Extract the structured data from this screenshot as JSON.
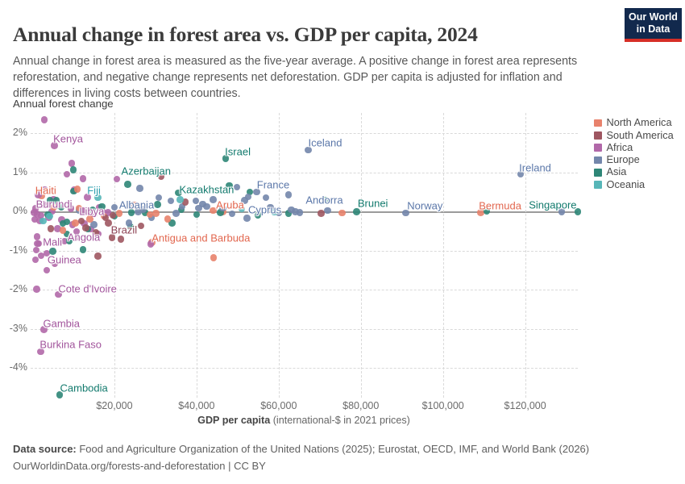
{
  "header": {
    "title": "Annual change in forest area vs. GDP per capita, 2024",
    "subtitle": "Annual change in forest area is measured as the five-year average. A positive change in forest area represents reforestation, and negative change represents net deforestation. GDP per capita is adjusted for inflation and differences in living costs between countries.",
    "logo": {
      "line1": "Our World",
      "line2": "in Data"
    }
  },
  "chart_data": {
    "type": "scatter",
    "title": "Annual change in forest area vs. GDP per capita, 2024",
    "y_axis_title": "Annual forest change",
    "xlabel_bold": "GDP per capita",
    "xlabel_rest": " (international-$ in 2021 prices)",
    "xlim_dollars": [
      0,
      133000
    ],
    "ylim_percent": [
      -4.8,
      2.5
    ],
    "grid": true,
    "legend_position": "right",
    "x_ticks": [
      {
        "label": "$20,000",
        "value": 20
      },
      {
        "label": "$40,000",
        "value": 40
      },
      {
        "label": "$60,000",
        "value": 60
      },
      {
        "label": "$80,000",
        "value": 80
      },
      {
        "label": "$100,000",
        "value": 100
      },
      {
        "label": "$120,000",
        "value": 120
      }
    ],
    "y_ticks": [
      {
        "label": "2%",
        "value": 2
      },
      {
        "label": "1%",
        "value": 1
      },
      {
        "label": "0%",
        "value": 0
      },
      {
        "label": "-1%",
        "value": -1
      },
      {
        "label": "-2%",
        "value": -2
      },
      {
        "label": "-3%",
        "value": -3
      },
      {
        "label": "-4%",
        "value": -4
      }
    ],
    "continents": {
      "NA": {
        "name": "North America",
        "dot": "#e8826c",
        "text": "#e2674f"
      },
      "SA": {
        "name": "South America",
        "dot": "#9e5661",
        "text": "#8d4254"
      },
      "AF": {
        "name": "Africa",
        "dot": "#b168a9",
        "text": "#a2559c"
      },
      "EU": {
        "name": "Europe",
        "dot": "#7386ab",
        "text": "#5b77a9"
      },
      "AS": {
        "name": "Asia",
        "dot": "#2e8677",
        "text": "#127a6d"
      },
      "OC": {
        "name": "Oceania",
        "dot": "#57b6b8",
        "text": "#2d9fae"
      }
    },
    "legend_order": [
      "NA",
      "SA",
      "AF",
      "EU",
      "AS",
      "OC"
    ],
    "points": [
      [
        "AF",
        5.4,
        1.68,
        "Kenya",
        17,
        -9
      ],
      [
        "AS",
        47.1,
        1.35,
        "Israel",
        15,
        -9
      ],
      [
        "EU",
        67.2,
        1.57,
        "Iceland",
        21,
        -9
      ],
      [
        "EU",
        118.9,
        0.95,
        "Ireland",
        18,
        -8
      ],
      [
        "AS",
        23.2,
        0.69,
        "Azerbaijan",
        23,
        -17
      ],
      [
        "AS",
        35.6,
        0.47,
        "Kazakhstan",
        35,
        -4
      ],
      [
        "EU",
        56.9,
        0.35,
        "France",
        9,
        -16
      ],
      [
        "EU",
        71.9,
        0.02,
        "Andorra",
        -4,
        -13
      ],
      [
        "AS",
        79.0,
        -0.01,
        "Brunei",
        20,
        -10
      ],
      [
        "EU",
        90.9,
        -0.04,
        "Norway",
        24,
        -9
      ],
      [
        "NA",
        109.2,
        -0.03,
        "Bermuda",
        24,
        -8
      ],
      [
        "AS",
        132.8,
        -0.01,
        "Singapore",
        -31,
        -8
      ],
      [
        "EU",
        52.3,
        -0.18,
        "Cyprus",
        22,
        -11
      ],
      [
        "NA",
        46.4,
        -0.01,
        "Aruba",
        9,
        -8
      ],
      [
        "EU",
        25.8,
        -0.01,
        "Albania",
        -2,
        -8
      ],
      [
        "AF",
        18.4,
        -0.03,
        "Libya",
        -20,
        -1
      ],
      [
        "AF",
        0.8,
        0.07,
        "Burundi",
        23,
        -6
      ],
      [
        "NA",
        2.3,
        0.39,
        "Haiti",
        5,
        -7
      ],
      [
        "OC",
        16.0,
        0.35,
        "Fiji",
        -5,
        -9
      ],
      [
        "AF",
        1.6,
        -0.82,
        "Mali",
        17,
        -2
      ],
      [
        "AF",
        10.8,
        -0.52,
        "Angola",
        9,
        7
      ],
      [
        "AF",
        3.5,
        -1.07,
        "Guinea",
        22,
        8
      ],
      [
        "SA",
        19.4,
        -0.67,
        "Brazil",
        15,
        -9
      ],
      [
        "NA",
        29.1,
        -0.79,
        "Antigua and Barbuda",
        61,
        -5
      ],
      [
        "AF",
        6.4,
        -2.12,
        "Cote d'Ivoire",
        36,
        -7
      ],
      [
        "AF",
        2.8,
        -3.02,
        "Gambia",
        22,
        -7
      ],
      [
        "AF",
        2.1,
        -3.59,
        "Burkina Faso",
        37,
        -9
      ],
      [
        "AS",
        6.7,
        -4.69,
        "Cambodia",
        30,
        -8
      ],
      [
        "AF",
        2.9,
        2.34
      ],
      [
        "AF",
        9.6,
        1.23
      ],
      [
        "AF",
        8.4,
        0.95
      ],
      [
        "AF",
        12.4,
        0.83
      ],
      [
        "AF",
        20.6,
        0.82
      ],
      [
        "AF",
        13.4,
        0.36
      ],
      [
        "AF",
        16.3,
        0.1
      ],
      [
        "AF",
        0.5,
        -0.03
      ],
      [
        "AF",
        1.2,
        -0.07
      ],
      [
        "AF",
        2.2,
        -0.1
      ],
      [
        "AF",
        4.8,
        0.0
      ],
      [
        "AF",
        9.4,
        0.07
      ],
      [
        "AF",
        12.4,
        0.01
      ],
      [
        "AF",
        15.0,
        -0.07
      ],
      [
        "AF",
        17.3,
        -0.03
      ],
      [
        "AF",
        0.6,
        -0.21
      ],
      [
        "AF",
        1.9,
        -0.24
      ],
      [
        "AF",
        9.8,
        -0.34
      ],
      [
        "AF",
        12.7,
        -0.31
      ],
      [
        "AF",
        16.0,
        -0.58
      ],
      [
        "AF",
        1.2,
        -0.65
      ],
      [
        "AF",
        1.3,
        -0.82
      ],
      [
        "AF",
        7.8,
        -0.76
      ],
      [
        "AF",
        1.0,
        -0.99
      ],
      [
        "AF",
        2.2,
        -1.13
      ],
      [
        "AF",
        0.8,
        -1.24
      ],
      [
        "AF",
        5.5,
        -1.34
      ],
      [
        "AF",
        3.5,
        -1.51
      ],
      [
        "AF",
        1.1,
        -1.99
      ],
      [
        "AF",
        28.8,
        -0.84
      ],
      [
        "AF",
        4.0,
        -0.15
      ],
      [
        "AF",
        6.2,
        -0.44
      ],
      [
        "AF",
        3.0,
        0.55
      ],
      [
        "AF",
        5.2,
        0.3
      ],
      [
        "AF",
        7.2,
        -0.22
      ],
      [
        "AF",
        11.0,
        -0.66
      ],
      [
        "AF",
        14.2,
        -0.45
      ],
      [
        "AF",
        2.6,
        0.18
      ],
      [
        "AF",
        1.5,
        0.42
      ],
      [
        "AF",
        10.2,
        0.55
      ],
      [
        "AS",
        10.0,
        1.06
      ],
      [
        "AS",
        4.3,
        0.28
      ],
      [
        "AS",
        5.9,
        0.28
      ],
      [
        "AS",
        7.1,
        0.1
      ],
      [
        "AS",
        7.5,
        -0.31
      ],
      [
        "AS",
        8.4,
        -0.27
      ],
      [
        "AS",
        8.4,
        -0.58
      ],
      [
        "AS",
        12.4,
        -0.98
      ],
      [
        "AS",
        10.1,
        0.52
      ],
      [
        "AS",
        14.7,
        0.04
      ],
      [
        "AS",
        24.1,
        -0.03
      ],
      [
        "AS",
        27.5,
        -0.03
      ],
      [
        "AS",
        34.0,
        -0.3
      ],
      [
        "AS",
        36.3,
        0.04
      ],
      [
        "AS",
        23.9,
        -0.4
      ],
      [
        "AS",
        48.0,
        0.66
      ],
      [
        "AS",
        53.0,
        0.5
      ],
      [
        "AS",
        45.8,
        -0.03
      ],
      [
        "AS",
        54.9,
        -0.09
      ],
      [
        "AS",
        62.4,
        -0.05
      ],
      [
        "AS",
        71.3,
        0.29
      ],
      [
        "AS",
        110.7,
        0.01
      ],
      [
        "AS",
        13.5,
        -0.45
      ],
      [
        "AS",
        17.0,
        0.12
      ],
      [
        "AS",
        20.0,
        -0.12
      ],
      [
        "AS",
        3.8,
        -0.08
      ],
      [
        "AS",
        5.0,
        -1.02
      ],
      [
        "AS",
        6.5,
        0.15
      ],
      [
        "AS",
        9.0,
        -0.75
      ],
      [
        "AS",
        30.5,
        0.18
      ],
      [
        "AS",
        40.0,
        -0.08
      ],
      [
        "EU",
        11.4,
        0.03
      ],
      [
        "EU",
        15.0,
        -0.34
      ],
      [
        "EU",
        23.5,
        -0.3
      ],
      [
        "EU",
        26.2,
        0.59
      ],
      [
        "EU",
        33.7,
        0.27
      ],
      [
        "EU",
        39.8,
        0.27
      ],
      [
        "EU",
        41.5,
        0.19
      ],
      [
        "EU",
        42.5,
        0.12
      ],
      [
        "EU",
        40.5,
        0.08
      ],
      [
        "EU",
        46.4,
        0.08
      ],
      [
        "EU",
        48.7,
        -0.06
      ],
      [
        "EU",
        49.8,
        0.62
      ],
      [
        "EU",
        51.7,
        0.28
      ],
      [
        "EU",
        52.6,
        0.37
      ],
      [
        "EU",
        54.6,
        0.5
      ],
      [
        "EU",
        62.4,
        0.42
      ],
      [
        "EU",
        63.1,
        0.04
      ],
      [
        "EU",
        64.1,
        -0.01
      ],
      [
        "EU",
        65.1,
        -0.03
      ],
      [
        "EU",
        128.9,
        -0.01
      ],
      [
        "EU",
        20.0,
        0.1
      ],
      [
        "EU",
        24.5,
        0.16
      ],
      [
        "EU",
        29.0,
        -0.15
      ],
      [
        "EU",
        36.5,
        0.12
      ],
      [
        "EU",
        44.0,
        0.3
      ],
      [
        "EU",
        58.0,
        0.1
      ],
      [
        "EU",
        60.0,
        -0.04
      ],
      [
        "EU",
        35.0,
        -0.05
      ],
      [
        "EU",
        30.8,
        0.35
      ],
      [
        "EU",
        27.0,
        0.05
      ],
      [
        "NA",
        5.2,
        0.1
      ],
      [
        "NA",
        11.0,
        0.57
      ],
      [
        "NA",
        11.4,
        0.08
      ],
      [
        "NA",
        7.5,
        -0.48
      ],
      [
        "NA",
        21.2,
        -0.05
      ],
      [
        "NA",
        30.1,
        -0.05
      ],
      [
        "NA",
        33.0,
        -0.2
      ],
      [
        "NA",
        44.0,
        0.02
      ],
      [
        "NA",
        44.1,
        -1.19
      ],
      [
        "NA",
        75.4,
        -0.04
      ],
      [
        "NA",
        17.5,
        -0.12
      ],
      [
        "NA",
        10.5,
        -0.3
      ],
      [
        "NA",
        25.0,
        0.15
      ],
      [
        "NA",
        14.0,
        -0.2
      ],
      [
        "NA",
        28.6,
        -0.08
      ],
      [
        "SA",
        37.3,
        0.24
      ],
      [
        "SA",
        31.4,
        0.9
      ],
      [
        "SA",
        19.6,
        -0.1
      ],
      [
        "SA",
        17.9,
        -0.17
      ],
      [
        "SA",
        26.5,
        -0.37
      ],
      [
        "SA",
        21.6,
        -0.71
      ],
      [
        "SA",
        16.0,
        -1.14
      ],
      [
        "SA",
        4.5,
        -0.44
      ],
      [
        "SA",
        70.3,
        -0.05
      ],
      [
        "SA",
        12.0,
        -0.25
      ],
      [
        "SA",
        15.5,
        -0.55
      ],
      [
        "SA",
        18.5,
        -0.3
      ],
      [
        "SA",
        13.0,
        -0.42
      ],
      [
        "OC",
        4.2,
        -0.12
      ],
      [
        "OC",
        2.6,
        -0.25
      ],
      [
        "OC",
        59.0,
        -0.02
      ],
      [
        "OC",
        51.0,
        0.06
      ],
      [
        "OC",
        36.0,
        0.3
      ]
    ]
  },
  "footer": {
    "source_label": "Data source:",
    "source_text": " Food and Agriculture Organization of the United Nations (2025); Eurostat, OECD, IMF, and World Bank (2026)",
    "link": "OurWorldinData.org/forests-and-deforestation",
    "license": " | CC BY"
  }
}
